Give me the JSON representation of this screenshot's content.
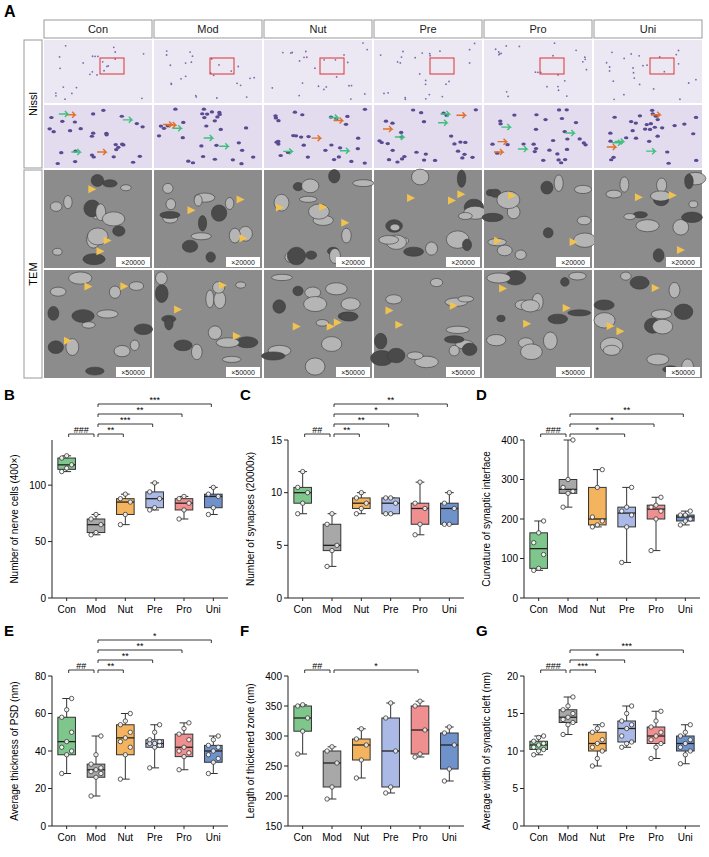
{
  "panel_a": {
    "letter": "A",
    "columns": [
      "Con",
      "Mod",
      "Nut",
      "Pre",
      "Pro",
      "Uni"
    ],
    "rows": [
      "Nissl",
      "TEM"
    ],
    "tem_scales": [
      "×20000",
      "×50000"
    ]
  },
  "panel_letters": [
    "B",
    "C",
    "D",
    "E",
    "F",
    "G"
  ],
  "chart_data": [
    {
      "type": "box",
      "ylabel": "Number of nerve cells (400×)",
      "categories": [
        "Con",
        "Mod",
        "Nut",
        "Pre",
        "Pro",
        "Uni"
      ],
      "colors": [
        "#7fc68c",
        "#a8a8a8",
        "#f4b35e",
        "#aab9e6",
        "#f08f8f",
        "#7092cb"
      ],
      "ylim": [
        0,
        140
      ],
      "yticks": [
        0,
        50,
        100
      ],
      "min": [
        112,
        56,
        65,
        78,
        70,
        74
      ],
      "q1": [
        114,
        58,
        74,
        80,
        78,
        80
      ],
      "median": [
        118,
        65,
        85,
        88,
        84,
        90
      ],
      "q3": [
        124,
        70,
        88,
        94,
        88,
        92
      ],
      "max": [
        126,
        74,
        92,
        102,
        90,
        98
      ],
      "points": [
        [
          112,
          115,
          118,
          124,
          126
        ],
        [
          56,
          58,
          65,
          70,
          74
        ],
        [
          65,
          74,
          85,
          88,
          92
        ],
        [
          78,
          80,
          88,
          94,
          102
        ],
        [
          70,
          78,
          84,
          88,
          90
        ],
        [
          74,
          80,
          90,
          92,
          98
        ]
      ],
      "annotations": [
        {
          "from": 0,
          "to": 1,
          "label": "###"
        },
        {
          "from": 1,
          "to": 2,
          "label": "**"
        },
        {
          "from": 1,
          "to": 3,
          "label": "***"
        },
        {
          "from": 1,
          "to": 4,
          "label": "**"
        },
        {
          "from": 1,
          "to": 5,
          "label": "***"
        }
      ]
    },
    {
      "type": "box",
      "ylabel": "Number of synapses (20000x)",
      "categories": [
        "Con",
        "Mod",
        "Nut",
        "Pre",
        "Pro",
        "Uni"
      ],
      "colors": [
        "#7fc68c",
        "#a8a8a8",
        "#f4b35e",
        "#aab9e6",
        "#f08f8f",
        "#7092cb"
      ],
      "ylim": [
        0,
        15
      ],
      "yticks": [
        0,
        5,
        10,
        15
      ],
      "min": [
        8,
        3,
        8,
        8,
        6,
        7
      ],
      "q1": [
        9,
        4.5,
        8.5,
        8,
        7,
        7
      ],
      "median": [
        10,
        5,
        9,
        9,
        8.5,
        8.5
      ],
      "q3": [
        10.5,
        7,
        9.5,
        9.5,
        9,
        9
      ],
      "max": [
        12,
        8,
        10,
        9.5,
        11,
        10
      ],
      "points": [
        [
          8,
          9,
          10,
          10.5,
          12
        ],
        [
          3,
          4.5,
          5,
          7,
          8
        ],
        [
          8,
          8.5,
          9,
          9.5,
          10
        ],
        [
          8,
          8,
          9,
          9.5,
          9.5
        ],
        [
          6,
          7,
          8.5,
          9,
          11
        ],
        [
          7,
          7,
          8.5,
          9,
          10
        ]
      ],
      "annotations": [
        {
          "from": 0,
          "to": 1,
          "label": "##"
        },
        {
          "from": 1,
          "to": 2,
          "label": "**"
        },
        {
          "from": 1,
          "to": 3,
          "label": "**"
        },
        {
          "from": 1,
          "to": 4,
          "label": "*"
        },
        {
          "from": 1,
          "to": 5,
          "label": "**"
        }
      ]
    },
    {
      "type": "box",
      "ylabel": "Curvature of synaptic interface",
      "categories": [
        "Con",
        "Mod",
        "Nut",
        "Pre",
        "Pro",
        "Uni"
      ],
      "colors": [
        "#7fc68c",
        "#a8a8a8",
        "#f4b35e",
        "#aab9e6",
        "#f08f8f",
        "#7092cb"
      ],
      "ylim": [
        0,
        400
      ],
      "yticks": [
        0,
        100,
        200,
        300,
        400
      ],
      "min": [
        70,
        230,
        180,
        90,
        120,
        185
      ],
      "q1": [
        75,
        265,
        185,
        180,
        200,
        195
      ],
      "median": [
        125,
        275,
        200,
        215,
        225,
        205
      ],
      "q3": [
        165,
        300,
        280,
        230,
        235,
        210
      ],
      "max": [
        195,
        400,
        325,
        280,
        255,
        220
      ],
      "points": [
        [
          70,
          75,
          110,
          140,
          165,
          195
        ],
        [
          230,
          265,
          270,
          280,
          300,
          400
        ],
        [
          180,
          185,
          195,
          205,
          280,
          325
        ],
        [
          90,
          180,
          210,
          220,
          230,
          280
        ],
        [
          120,
          200,
          220,
          230,
          235,
          255
        ],
        [
          185,
          195,
          200,
          210,
          210,
          220
        ]
      ],
      "annotations": [
        {
          "from": 0,
          "to": 1,
          "label": "###"
        },
        {
          "from": 1,
          "to": 3,
          "label": "*"
        },
        {
          "from": 1,
          "to": 4,
          "label": "*"
        },
        {
          "from": 1,
          "to": 5,
          "label": "**"
        }
      ]
    },
    {
      "type": "box",
      "ylabel": "Average thickness of PSD (nm)",
      "categories": [
        "Con",
        "Mod",
        "Nut",
        "Pre",
        "Pro",
        "Uni"
      ],
      "colors": [
        "#7fc68c",
        "#a8a8a8",
        "#f4b35e",
        "#aab9e6",
        "#f08f8f",
        "#7092cb"
      ],
      "ylim": [
        0,
        80
      ],
      "yticks": [
        0,
        20,
        40,
        60,
        80
      ],
      "min": [
        28,
        16,
        25,
        31,
        30,
        28
      ],
      "q1": [
        38,
        26,
        38,
        42,
        37,
        34
      ],
      "median": [
        45,
        30,
        47,
        44,
        42,
        40
      ],
      "q3": [
        58,
        33,
        54,
        46,
        49,
        43
      ],
      "max": [
        68,
        48,
        60,
        54,
        55,
        48
      ],
      "points": [
        [
          28,
          38,
          40,
          42,
          45,
          50,
          58,
          62,
          68
        ],
        [
          16,
          26,
          28,
          29,
          30,
          31,
          33,
          38,
          48
        ],
        [
          25,
          38,
          42,
          45,
          47,
          50,
          54,
          56,
          60
        ],
        [
          31,
          42,
          43,
          44,
          44,
          45,
          46,
          50,
          54
        ],
        [
          30,
          37,
          39,
          40,
          42,
          46,
          49,
          52,
          55
        ],
        [
          28,
          34,
          36,
          38,
          40,
          42,
          43,
          46,
          48
        ]
      ],
      "annotations": [
        {
          "from": 0,
          "to": 1,
          "label": "##"
        },
        {
          "from": 1,
          "to": 2,
          "label": "**"
        },
        {
          "from": 1,
          "to": 3,
          "label": "**"
        },
        {
          "from": 1,
          "to": 4,
          "label": "**"
        },
        {
          "from": 1,
          "to": 5,
          "label": "*"
        }
      ]
    },
    {
      "type": "box",
      "ylabel": "Length of thickened zone (nm)",
      "categories": [
        "Con",
        "Mod",
        "Nut",
        "Pre",
        "Pro",
        "Uni"
      ],
      "colors": [
        "#7fc68c",
        "#a8a8a8",
        "#f4b35e",
        "#aab9e6",
        "#f08f8f",
        "#7092cb"
      ],
      "ylim": [
        150,
        400
      ],
      "yticks": [
        150,
        200,
        250,
        300,
        350,
        400
      ],
      "min": [
        270,
        195,
        230,
        205,
        265,
        225
      ],
      "q1": [
        308,
        215,
        260,
        215,
        270,
        245
      ],
      "median": [
        330,
        255,
        285,
        275,
        310,
        285
      ],
      "q3": [
        350,
        275,
        295,
        330,
        350,
        305
      ],
      "max": [
        352,
        282,
        312,
        355,
        358,
        315
      ],
      "points": [
        [
          270,
          308,
          330,
          350,
          352
        ],
        [
          195,
          215,
          255,
          275,
          282
        ],
        [
          230,
          260,
          285,
          295,
          312
        ],
        [
          205,
          215,
          275,
          330,
          355
        ],
        [
          265,
          270,
          310,
          350,
          358
        ],
        [
          225,
          245,
          285,
          305,
          315
        ]
      ],
      "annotations": [
        {
          "from": 0,
          "to": 1,
          "label": "##"
        },
        {
          "from": 1,
          "to": 4,
          "label": "*"
        }
      ]
    },
    {
      "type": "box",
      "ylabel": "Average width of synaptic cleft (nm)",
      "categories": [
        "Con",
        "Mod",
        "Nut",
        "Pre",
        "Pro",
        "Uni"
      ],
      "colors": [
        "#7fc68c",
        "#a8a8a8",
        "#f4b35e",
        "#aab9e6",
        "#f08f8f",
        "#7092cb"
      ],
      "ylim": [
        0,
        20
      ],
      "yticks": [
        0,
        5,
        10,
        15,
        20
      ],
      "min": [
        9.5,
        12.2,
        8,
        10.5,
        9,
        8.3
      ],
      "q1": [
        10.2,
        13.8,
        10,
        11.2,
        11,
        10
      ],
      "median": [
        10.8,
        14.5,
        11,
        13,
        12,
        11
      ],
      "q3": [
        11.3,
        15.5,
        12.5,
        14,
        13.2,
        12
      ],
      "max": [
        12,
        17.2,
        13.5,
        16,
        15.3,
        13.5
      ],
      "points": [
        [
          9.5,
          10,
          10.2,
          10.5,
          10.8,
          11,
          11.3,
          11.8,
          12
        ],
        [
          12.2,
          13.5,
          13.8,
          14.2,
          14.5,
          15,
          15.5,
          16,
          17.2
        ],
        [
          8,
          9,
          10,
          10.5,
          11,
          11.5,
          12.5,
          13,
          13.5
        ],
        [
          10.5,
          11,
          11.2,
          12,
          13,
          13.5,
          14,
          15,
          16
        ],
        [
          9,
          10.5,
          11,
          11.5,
          12,
          12.5,
          13.2,
          14,
          15.3
        ],
        [
          8.3,
          9.5,
          10,
          10.5,
          11,
          11.5,
          12,
          12.5,
          13.5
        ]
      ],
      "annotations": [
        {
          "from": 0,
          "to": 1,
          "label": "###"
        },
        {
          "from": 1,
          "to": 2,
          "label": "***"
        },
        {
          "from": 1,
          "to": 3,
          "label": "*"
        },
        {
          "from": 1,
          "to": 5,
          "label": "***"
        }
      ]
    }
  ]
}
